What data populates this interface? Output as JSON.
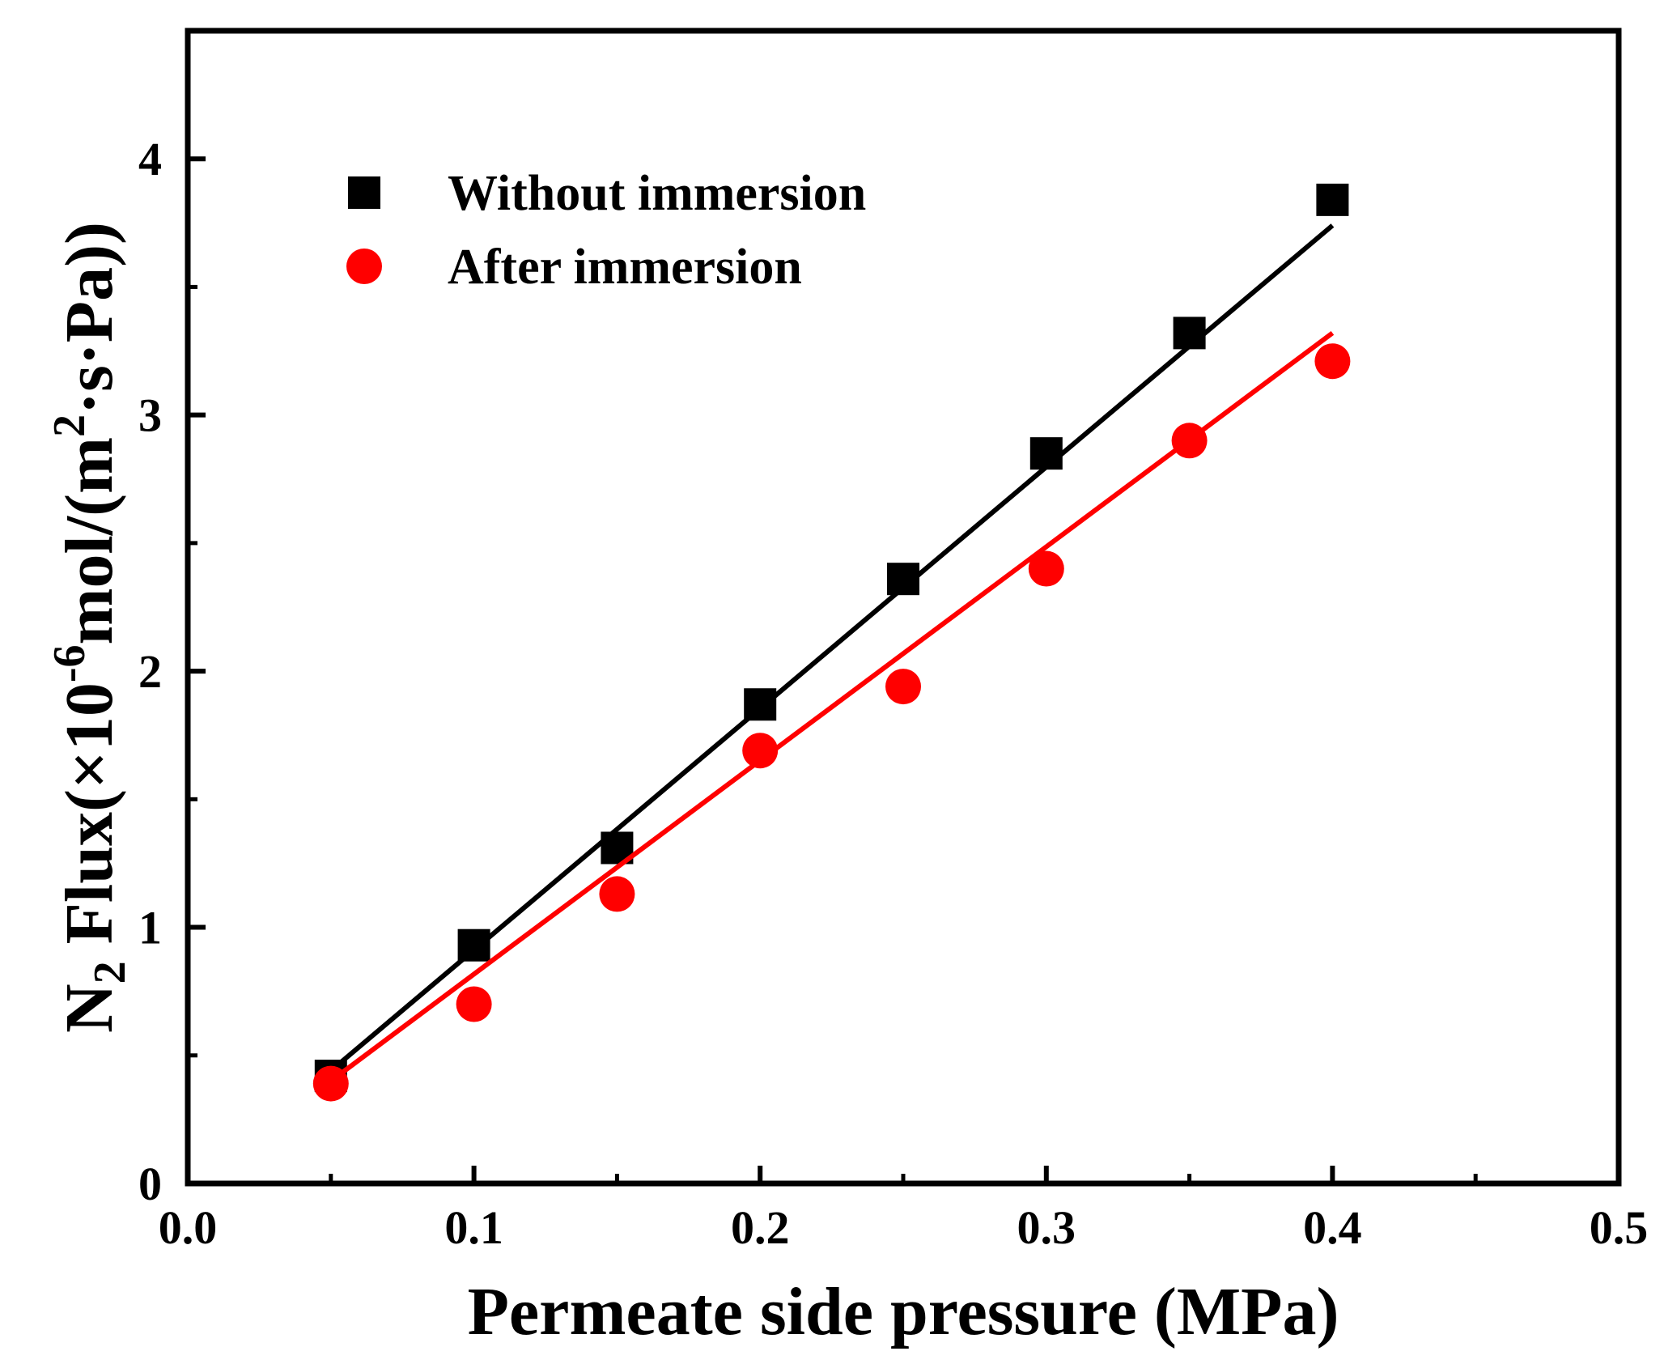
{
  "chart_data": {
    "type": "scatter",
    "xlabel": "Permeate side pressure (MPa)",
    "ylabel": {
      "prefix": "N",
      "sub": "2",
      "mid1": " Flux(×10",
      "sup1": "-6",
      "mid2": "mol/(m",
      "sup2": "2",
      "mid3": "·s·Pa))"
    },
    "xlim": [
      0.0,
      0.5
    ],
    "ylim": [
      0,
      4.5
    ],
    "xticks": [
      0.0,
      0.1,
      0.2,
      0.3,
      0.4,
      0.5
    ],
    "xtick_labels": [
      "0.0",
      "0.1",
      "0.2",
      "0.3",
      "0.4",
      "0.5"
    ],
    "yticks": [
      0,
      1,
      2,
      3,
      4
    ],
    "ytick_labels": [
      "0",
      "1",
      "2",
      "3",
      "4"
    ],
    "grid": false,
    "legend_position": "top-left",
    "series": [
      {
        "name": "Without immersion",
        "marker": "square",
        "color": "#000000",
        "x": [
          0.05,
          0.1,
          0.15,
          0.2,
          0.25,
          0.3,
          0.35,
          0.4
        ],
        "y": [
          0.42,
          0.93,
          1.31,
          1.87,
          2.36,
          2.85,
          3.32,
          3.84
        ],
        "fit": {
          "x": [
            0.05,
            0.4
          ],
          "y": [
            0.44,
            3.74
          ]
        }
      },
      {
        "name": "After immersion",
        "marker": "circle",
        "color": "#ff0000",
        "x": [
          0.05,
          0.1,
          0.15,
          0.2,
          0.25,
          0.3,
          0.35,
          0.4
        ],
        "y": [
          0.39,
          0.7,
          1.13,
          1.69,
          1.94,
          2.4,
          2.9,
          3.21
        ],
        "fit": {
          "x": [
            0.05,
            0.4
          ],
          "y": [
            0.4,
            3.32
          ]
        }
      }
    ]
  }
}
